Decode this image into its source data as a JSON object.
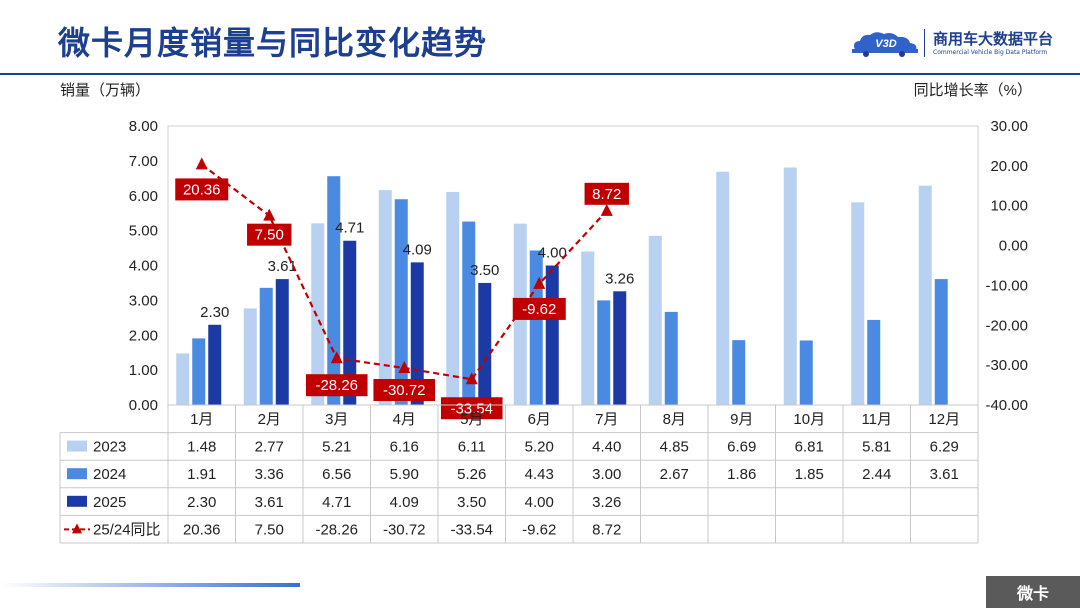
{
  "header": {
    "title": "微卡月度销量与同比变化趋势",
    "logo_mark": "V3D",
    "logo_cn": "商用车大数据平台",
    "logo_en": "Commercial Vehicle Big Data Platform",
    "badge": "微卡"
  },
  "chart_data": {
    "type": "bar",
    "title": "微卡月度销量与同比变化趋势",
    "ylabel": "销量（万辆）",
    "y2label": "同比增长率（%）",
    "ylim": [
      0,
      8
    ],
    "y2lim": [
      -40,
      30
    ],
    "yticks": [
      "0.00",
      "1.00",
      "2.00",
      "3.00",
      "4.00",
      "5.00",
      "6.00",
      "7.00",
      "8.00"
    ],
    "y2ticks": [
      "-40.00",
      "-30.00",
      "-20.00",
      "-10.00",
      "0.00",
      "10.00",
      "20.00",
      "30.00"
    ],
    "categories": [
      "1月",
      "2月",
      "3月",
      "4月",
      "5月",
      "6月",
      "7月",
      "8月",
      "9月",
      "10月",
      "11月",
      "12月"
    ],
    "series": [
      {
        "name": "2023",
        "kind": "bar",
        "color": "#b9d1f0",
        "values": [
          1.48,
          2.77,
          5.21,
          6.16,
          6.11,
          5.2,
          4.4,
          4.85,
          6.69,
          6.81,
          5.81,
          6.29
        ]
      },
      {
        "name": "2024",
        "kind": "bar",
        "color": "#4a8ae0",
        "values": [
          1.91,
          3.36,
          6.56,
          5.9,
          5.26,
          4.43,
          3.0,
          2.67,
          1.86,
          1.85,
          2.44,
          3.61
        ]
      },
      {
        "name": "2025",
        "kind": "bar",
        "color": "#1c3aa6",
        "values": [
          2.3,
          3.61,
          4.71,
          4.09,
          3.5,
          4.0,
          3.26,
          null,
          null,
          null,
          null,
          null
        ]
      },
      {
        "name": "25/24同比",
        "kind": "line",
        "axis": "right",
        "color": "#c00000",
        "values": [
          20.36,
          7.5,
          -28.26,
          -30.72,
          -33.54,
          -9.62,
          8.72,
          null,
          null,
          null,
          null,
          null
        ]
      }
    ],
    "bar_labels_2025": [
      "2.30",
      "3.61",
      "4.71",
      "4.09",
      "3.50",
      "4.00",
      "3.26"
    ],
    "yoy_labels": [
      "20.36",
      "7.50",
      "-28.26",
      "-30.72",
      "-33.54",
      "-9.62",
      "8.72"
    ],
    "table": {
      "rows": [
        {
          "name": "2023",
          "cells": [
            "1.48",
            "2.77",
            "5.21",
            "6.16",
            "6.11",
            "5.20",
            "4.40",
            "4.85",
            "6.69",
            "6.81",
            "5.81",
            "6.29"
          ]
        },
        {
          "name": "2024",
          "cells": [
            "1.91",
            "3.36",
            "6.56",
            "5.90",
            "5.26",
            "4.43",
            "3.00",
            "2.67",
            "1.86",
            "1.85",
            "2.44",
            "3.61"
          ]
        },
        {
          "name": "2025",
          "cells": [
            "2.30",
            "3.61",
            "4.71",
            "4.09",
            "3.50",
            "4.00",
            "3.26",
            "",
            "",
            "",
            "",
            ""
          ]
        },
        {
          "name": "25/24同比",
          "cells": [
            "20.36",
            "7.50",
            "-28.26",
            "-30.72",
            "-33.54",
            "-9.62",
            "8.72",
            "",
            "",
            "",
            "",
            ""
          ]
        }
      ]
    }
  }
}
